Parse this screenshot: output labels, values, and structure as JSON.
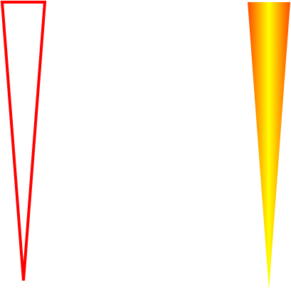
{
  "shapes": {
    "outline_triangle": {
      "semantic": "downward-pointing-triangle-outline",
      "stroke_color": "#ff0000",
      "fill": "none"
    },
    "gradient_triangle": {
      "semantic": "downward-pointing-triangle-gradient-fill",
      "gradient_edge_color": "#ff4a00",
      "gradient_center_color": "#ffff00"
    }
  }
}
